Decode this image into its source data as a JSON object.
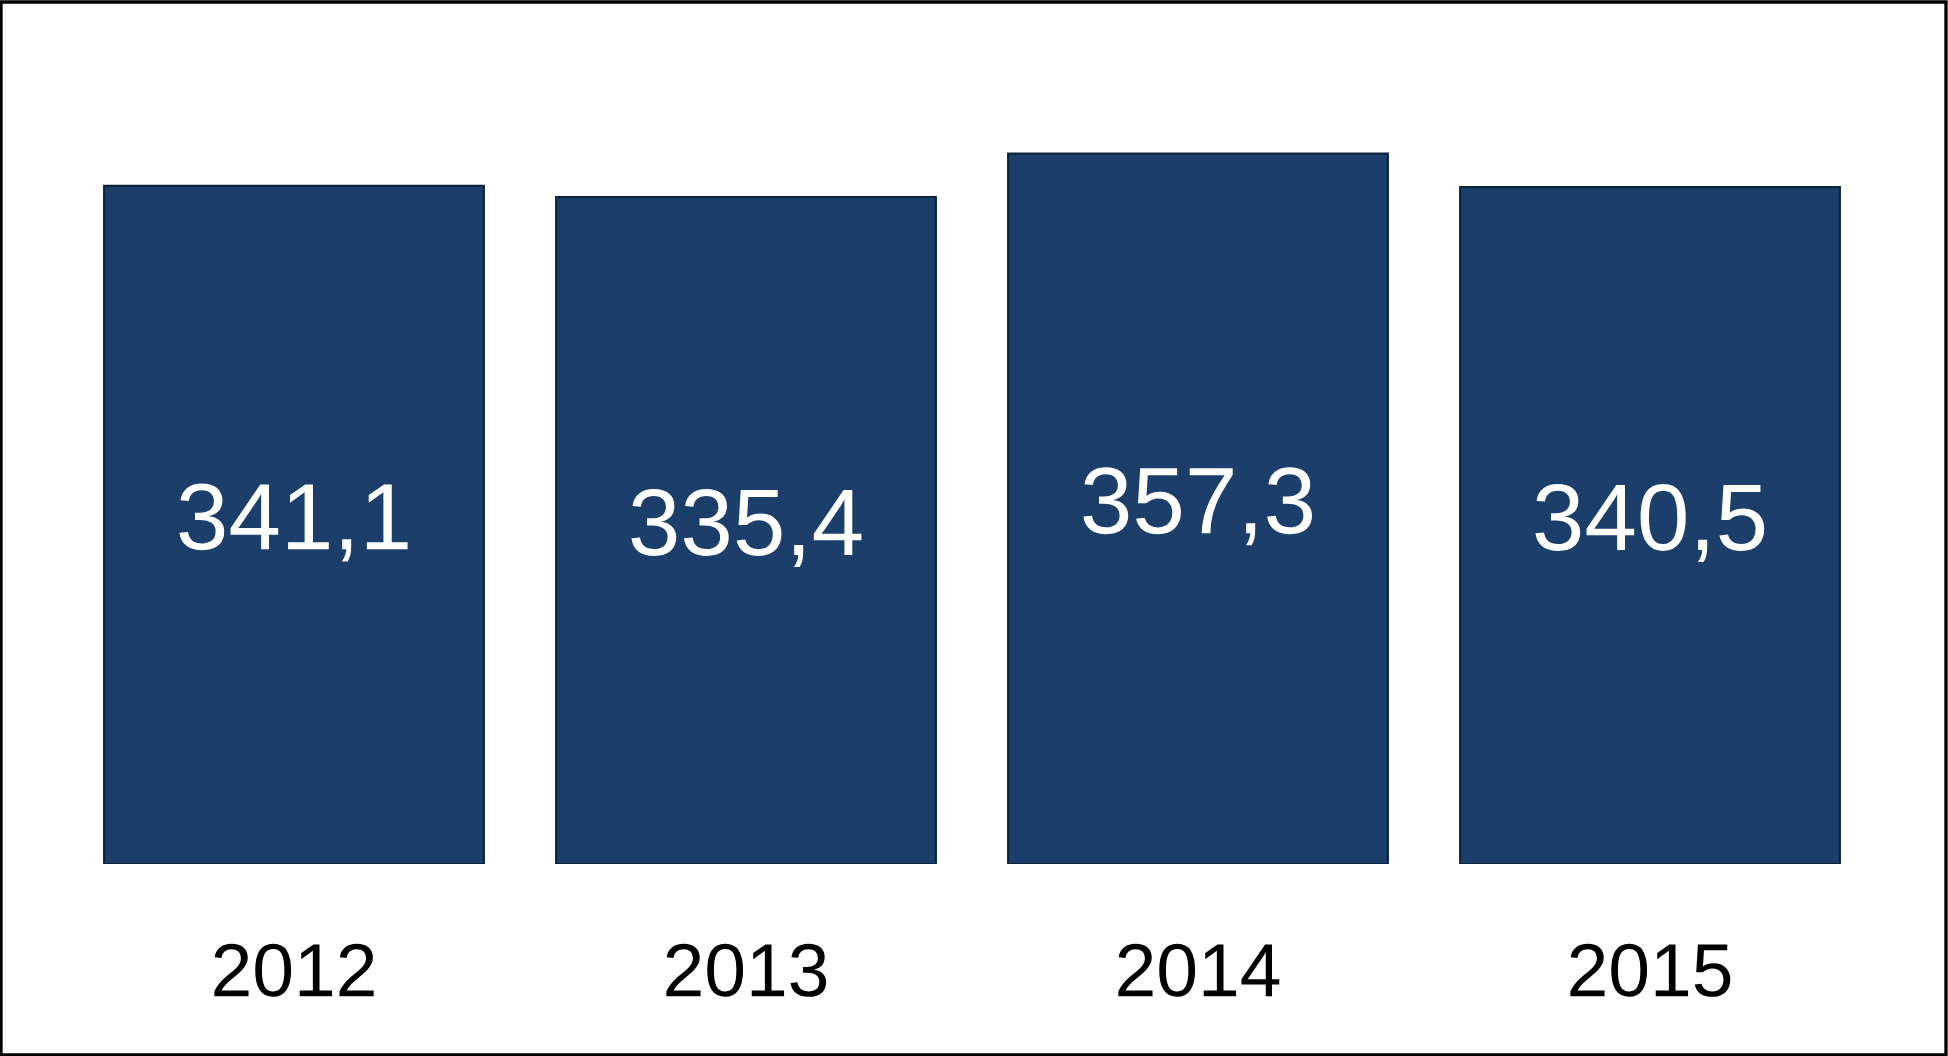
{
  "chart_data": {
    "type": "bar",
    "categories": [
      "2012",
      "2013",
      "2014",
      "2015"
    ],
    "values": [
      341.1,
      335.4,
      357.3,
      340.5
    ],
    "value_labels": [
      "341,1",
      "335,4",
      "357,3",
      "340,5"
    ],
    "color": "#1b3f6a",
    "grid": false,
    "legend": false
  }
}
